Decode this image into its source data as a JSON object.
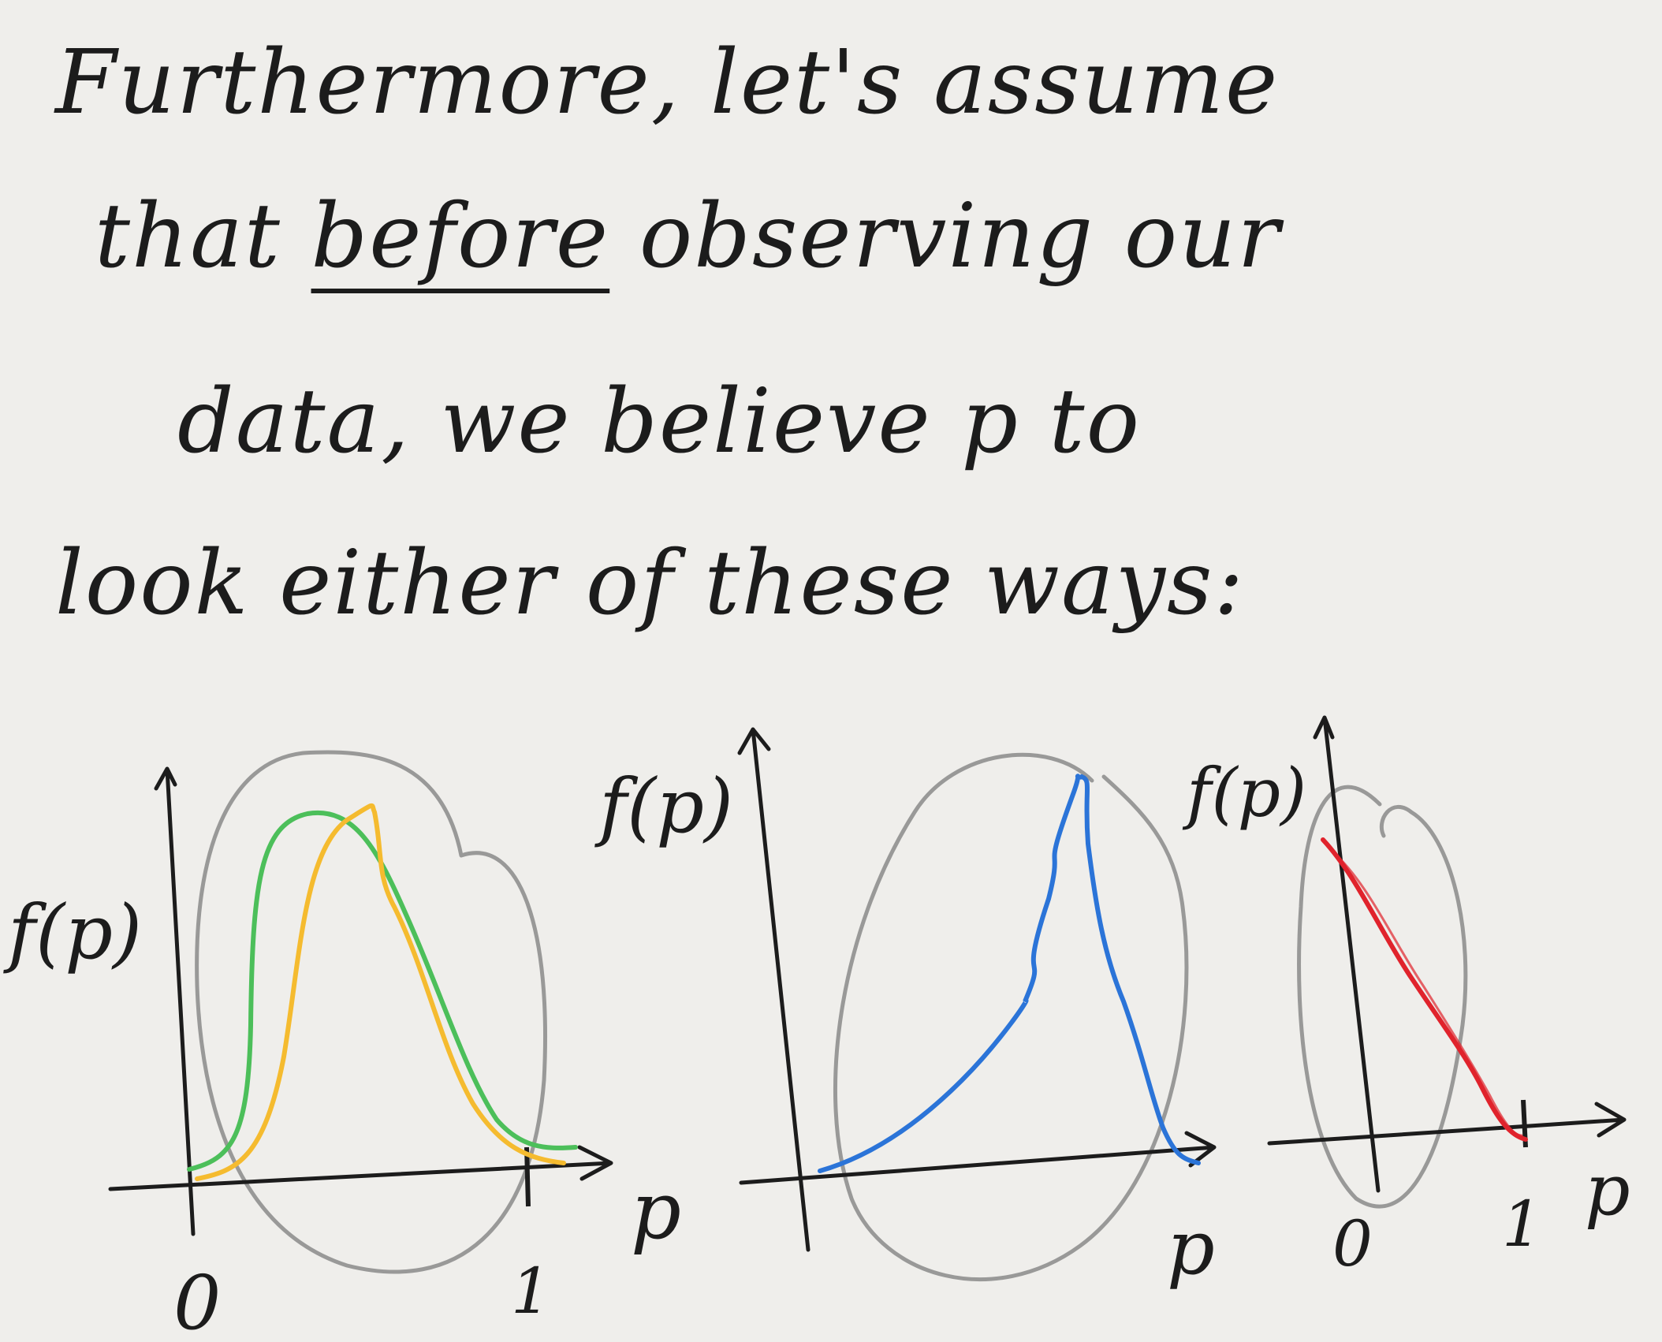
{
  "note": {
    "lines": [
      "Furthermore, let's assume",
      "that before observing our",
      "data, we believe p to",
      "look either of these ways:"
    ],
    "emphasis_word": "before"
  },
  "plots": [
    {
      "ylabel": "f(p)",
      "xlabel": "p",
      "ticks": [
        "0",
        "1"
      ],
      "curve_colors": [
        "#4cbf5a",
        "#f5bb2f"
      ]
    },
    {
      "ylabel": "f(p)",
      "xlabel": "p",
      "curve_colors": [
        "#2b74d8"
      ]
    },
    {
      "ylabel": "f(p)",
      "xlabel": "p",
      "ticks": [
        "0",
        "1"
      ],
      "curve_colors": [
        "#e0232c"
      ]
    }
  ],
  "colors": {
    "ink": "#1c1c1c",
    "circle": "#8a8a8a",
    "paper": "#efeeeb"
  }
}
